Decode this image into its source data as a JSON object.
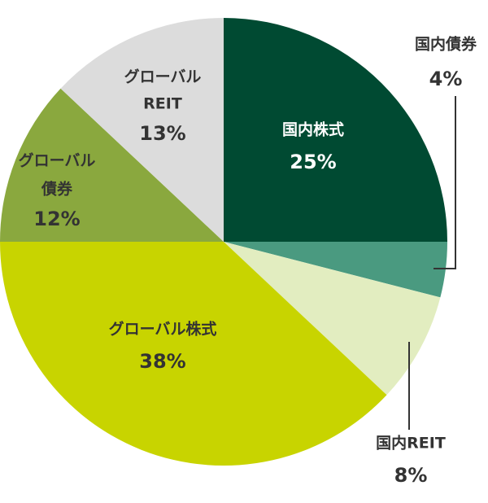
{
  "chart_data": {
    "type": "pie",
    "categories": [
      [
        "国内株式"
      ],
      [
        "国内債券"
      ],
      [
        "国内REIT"
      ],
      [
        "グローバル株式"
      ],
      [
        "グローバル",
        "債券"
      ],
      [
        "グローバル",
        "REIT"
      ]
    ],
    "values": [
      25,
      4,
      8,
      38,
      12,
      13
    ],
    "value_labels": [
      "25%",
      "4%",
      "8%",
      "38%",
      "12%",
      "13%"
    ],
    "colors": [
      "#004a32",
      "#4a9a80",
      "#e2edc0",
      "#c8d400",
      "#8aa83e",
      "#dcdcdc"
    ]
  }
}
